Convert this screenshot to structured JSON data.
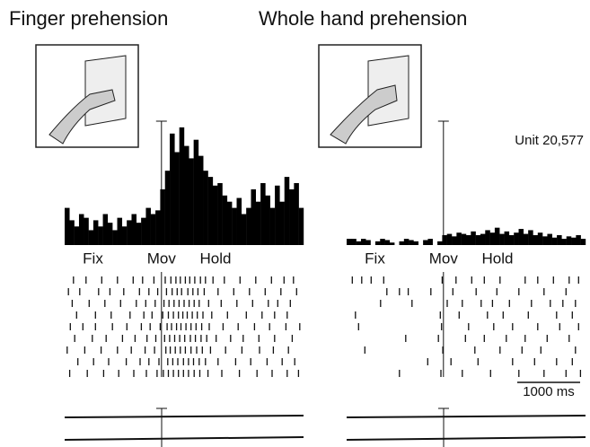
{
  "chart_data": [
    {
      "type": "histogram",
      "title": "Finger prehension",
      "color": "#000000",
      "xlim": [
        -1540,
        2260
      ],
      "ylim": [
        0,
        100
      ],
      "bins": [
        -1540,
        -1464,
        -1388,
        -1312,
        -1236,
        -1160,
        -1084,
        -1008,
        -932,
        -856,
        -780,
        -704,
        -628,
        -552,
        -476,
        -400,
        -324,
        -248,
        -172,
        -96,
        -20,
        56,
        132,
        208,
        284,
        360,
        436,
        512,
        588,
        664,
        740,
        816,
        892,
        968,
        1044,
        1120,
        1196,
        1272,
        1348,
        1424,
        1500,
        1576,
        1652,
        1728,
        1804,
        1880,
        1956,
        2032,
        2108,
        2184,
        2260
      ],
      "values": [
        30,
        20,
        15,
        25,
        22,
        12,
        20,
        15,
        25,
        18,
        12,
        22,
        15,
        20,
        25,
        18,
        22,
        30,
        25,
        28,
        45,
        60,
        90,
        75,
        95,
        80,
        70,
        85,
        72,
        60,
        55,
        48,
        50,
        40,
        35,
        30,
        38,
        25,
        30,
        45,
        35,
        50,
        40,
        30,
        48,
        35,
        55,
        45,
        50,
        30
      ],
      "events": [
        {
          "value": -1090,
          "label": "Fix"
        },
        {
          "value": 0,
          "label": "Mov"
        },
        {
          "value": 860,
          "label": "Hold"
        }
      ],
      "raster": [
        [
          -1400,
          -1200,
          -950,
          -700,
          -450,
          -300,
          -120,
          60,
          150,
          230,
          300,
          380,
          450,
          530,
          620,
          700,
          820,
          1000,
          1250,
          1500,
          1750,
          1950,
          2100
        ],
        [
          -1480,
          -1300,
          -1000,
          -820,
          -600,
          -350,
          -200,
          -60,
          80,
          170,
          250,
          320,
          420,
          500,
          580,
          680,
          900,
          1150,
          1400,
          1650,
          1900,
          2150
        ],
        [
          -1420,
          -1150,
          -900,
          -650,
          -400,
          -250,
          -100,
          40,
          120,
          200,
          280,
          360,
          440,
          520,
          600,
          750,
          950,
          1200,
          1450,
          1700,
          1850,
          2050
        ],
        [
          -1350,
          -1050,
          -800,
          -500,
          -280,
          -150,
          20,
          110,
          190,
          270,
          340,
          410,
          490,
          570,
          660,
          800,
          1050,
          1350,
          1600,
          1800,
          2000
        ],
        [
          -1450,
          -1250,
          -1050,
          -780,
          -550,
          -320,
          -180,
          -20,
          90,
          160,
          240,
          310,
          390,
          470,
          550,
          640,
          760,
          980,
          1220,
          1480,
          1720,
          1980,
          2200
        ],
        [
          -1380,
          -1100,
          -880,
          -620,
          -420,
          -230,
          -90,
          50,
          130,
          210,
          290,
          370,
          460,
          540,
          630,
          720,
          870,
          1100,
          1300,
          1550,
          1800,
          2080
        ],
        [
          -1500,
          -1220,
          -960,
          -700,
          -480,
          -260,
          -110,
          70,
          140,
          220,
          300,
          380,
          470,
          560,
          650,
          780,
          1020,
          1280,
          1560,
          1780,
          2020
        ],
        [
          -1330,
          -1080,
          -840,
          -560,
          -340,
          -200,
          -40,
          100,
          180,
          260,
          350,
          430,
          510,
          600,
          700,
          900,
          1180,
          1420,
          1680,
          1920,
          2120
        ],
        [
          -1460,
          -1180,
          -920,
          -680,
          -440,
          -240,
          -70,
          30,
          110,
          190,
          270,
          350,
          430,
          520,
          610,
          740,
          960,
          1240,
          1520,
          1760,
          2000,
          2180
        ]
      ]
    },
    {
      "type": "histogram",
      "title": "Whole hand prehension",
      "color": "#000000",
      "annotation": "Unit 20,577",
      "xlim": [
        -1540,
        2260
      ],
      "ylim": [
        0,
        100
      ],
      "bins": [
        -1540,
        -1464,
        -1388,
        -1312,
        -1236,
        -1160,
        -1084,
        -1008,
        -932,
        -856,
        -780,
        -704,
        -628,
        -552,
        -476,
        -400,
        -324,
        -248,
        -172,
        -96,
        -20,
        56,
        132,
        208,
        284,
        360,
        436,
        512,
        588,
        664,
        740,
        816,
        892,
        968,
        1044,
        1120,
        1196,
        1272,
        1348,
        1424,
        1500,
        1576,
        1652,
        1728,
        1804,
        1880,
        1956,
        2032,
        2108,
        2184,
        2260
      ],
      "values": [
        5,
        5,
        3,
        5,
        4,
        0,
        3,
        5,
        4,
        2,
        0,
        3,
        5,
        4,
        3,
        0,
        4,
        5,
        0,
        3,
        8,
        9,
        7,
        10,
        9,
        8,
        11,
        8,
        9,
        12,
        10,
        14,
        9,
        11,
        8,
        10,
        13,
        9,
        12,
        8,
        10,
        7,
        9,
        6,
        8,
        5,
        7,
        6,
        8,
        5
      ],
      "events": [
        {
          "value": -1090,
          "label": "Fix"
        },
        {
          "value": 0,
          "label": "Mov"
        },
        {
          "value": 860,
          "label": "Hold"
        }
      ],
      "scale_bar": {
        "value": 1000,
        "label": "1000 ms"
      },
      "raster": [
        [
          -1450,
          -1300,
          -1150,
          -950,
          -20,
          200,
          450,
          650,
          900,
          1300,
          1500,
          1750,
          2000,
          2150
        ],
        [
          -900,
          -700,
          -560,
          -200,
          150,
          520,
          850,
          1200,
          1600,
          1950
        ],
        [
          -1000,
          -500,
          60,
          300,
          600,
          780,
          1050,
          1400,
          1700,
          1900,
          2100
        ],
        [
          -1400,
          -50,
          250,
          700,
          950,
          1350,
          1800,
          2050
        ],
        [
          -1350,
          -30,
          400,
          800,
          1100,
          1500,
          1850,
          2150
        ],
        [
          -600,
          -80,
          350,
          650,
          1000,
          1300,
          1650,
          2000
        ],
        [
          -1250,
          -10,
          500,
          900,
          1250,
          1550,
          2100
        ],
        [
          -250,
          120,
          550,
          1100,
          1450,
          1800,
          2050
        ],
        [
          -700,
          -40,
          300,
          750,
          1200,
          1600,
          1950,
          2180
        ]
      ]
    }
  ]
}
